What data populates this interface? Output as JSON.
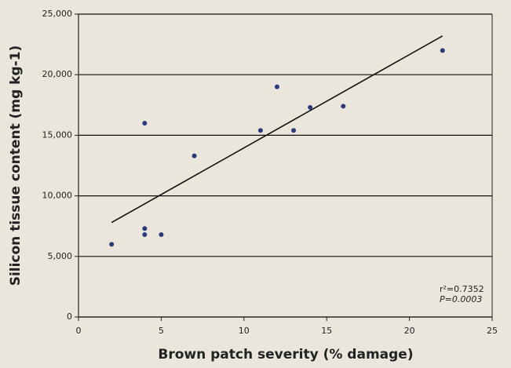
{
  "chart_data": {
    "type": "scatter",
    "x_label": "Brown patch severity (% damage)",
    "y_label": "Silicon tissue content (mg kg-1)",
    "x": [
      2,
      4,
      4,
      4,
      5,
      7,
      11,
      12,
      13,
      14,
      16,
      22
    ],
    "values": [
      6000,
      7300,
      6800,
      16000,
      6800,
      13300,
      15400,
      19000,
      15400,
      17300,
      17400,
      22000
    ],
    "color": "#2b3a7a",
    "trendline": {
      "x": [
        2,
        22
      ],
      "y": [
        7800,
        23200
      ],
      "color": "#111111"
    },
    "annotations": [
      "r²=0.7352",
      "P=0.0003"
    ],
    "xlim": [
      0,
      25
    ],
    "xticks": [
      0,
      5,
      10,
      15,
      20,
      25
    ],
    "ylim": [
      0,
      25000
    ],
    "yticks": [
      0,
      {
        "value": 5000,
        "label": "5,000"
      },
      {
        "value": 10000,
        "label": "10,000"
      },
      {
        "value": 15000,
        "label": "15,000"
      },
      {
        "value": 20000,
        "label": "20,000"
      },
      {
        "value": 25000,
        "label": "25,000"
      }
    ],
    "grid": true
  }
}
